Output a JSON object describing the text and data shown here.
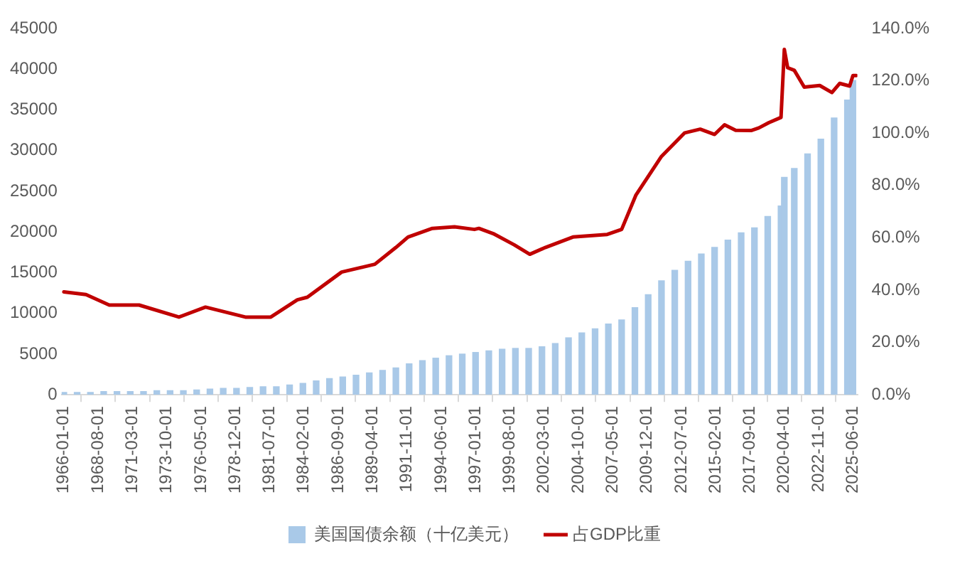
{
  "chart_data": {
    "type": "bar",
    "grid": false,
    "legend": "bottom",
    "x": [
      "1966-01-01",
      "1967-01-01",
      "1968-01-01",
      "1969-01-01",
      "1970-01-01",
      "1971-01-01",
      "1972-01-01",
      "1973-01-01",
      "1974-01-01",
      "1975-01-01",
      "1976-01-01",
      "1977-01-01",
      "1978-01-01",
      "1979-01-01",
      "1980-01-01",
      "1981-01-01",
      "1982-01-01",
      "1983-01-01",
      "1984-01-01",
      "1985-01-01",
      "1986-01-01",
      "1987-01-01",
      "1988-01-01",
      "1989-01-01",
      "1990-01-01",
      "1991-01-01",
      "1992-01-01",
      "1993-01-01",
      "1994-01-01",
      "1995-01-01",
      "1996-01-01",
      "1997-01-01",
      "1998-01-01",
      "1999-01-01",
      "2000-01-01",
      "2001-01-01",
      "2002-01-01",
      "2003-01-01",
      "2004-01-01",
      "2005-01-01",
      "2006-01-01",
      "2007-01-01",
      "2008-01-01",
      "2009-01-01",
      "2010-01-01",
      "2011-01-01",
      "2012-01-01",
      "2013-01-01",
      "2014-01-01",
      "2015-01-01",
      "2016-01-01",
      "2017-01-01",
      "2018-01-01",
      "2019-01-01",
      "2020-01-01",
      "2020-04-01",
      "2021-01-01",
      "2022-01-01",
      "2023-01-01",
      "2024-01-01",
      "2025-01-01",
      "2025-06-01"
    ],
    "xlim": [
      "1965-11-01",
      "2025-10-01"
    ],
    "xticks": [
      "1966-01-01",
      "1968-08-01",
      "1971-03-01",
      "1973-10-01",
      "1976-05-01",
      "1978-12-01",
      "1981-07-01",
      "1984-02-01",
      "1986-09-01",
      "1989-04-01",
      "1991-11-01",
      "1994-06-01",
      "1997-01-01",
      "1999-08-01",
      "2002-03-01",
      "2004-10-01",
      "2007-05-01",
      "2009-12-01",
      "2012-07-01",
      "2015-02-01",
      "2017-09-01",
      "2020-04-01",
      "2022-11-01",
      "2025-06-01"
    ],
    "ylim": [
      0,
      45000
    ],
    "yticks": [
      0,
      5000,
      10000,
      15000,
      20000,
      25000,
      30000,
      35000,
      40000,
      45000
    ],
    "y2lim": [
      0,
      140
    ],
    "y2ticks": [
      {
        "value": 0,
        "label": "0.0%"
      },
      {
        "value": 20,
        "label": "20.0%"
      },
      {
        "value": 40,
        "label": "40.0%"
      },
      {
        "value": 60,
        "label": "60.0%"
      },
      {
        "value": 80,
        "label": "80.0%"
      },
      {
        "value": 100,
        "label": "100.0%"
      },
      {
        "value": 120,
        "label": "120.0%"
      },
      {
        "value": 140,
        "label": "140.0%"
      }
    ],
    "series": [
      {
        "name": "美国国债余额（十亿美元）",
        "color": "#a9c9e8",
        "values": [
          300,
          300,
          300,
          400,
          400,
          400,
          400,
          500,
          500,
          500,
          600,
          700,
          800,
          800,
          900,
          1000,
          1000,
          1200,
          1400,
          1700,
          2000,
          2200,
          2400,
          2700,
          3000,
          3300,
          3800,
          4200,
          4500,
          4800,
          5000,
          5200,
          5400,
          5600,
          5700,
          5700,
          5900,
          6300,
          7000,
          7600,
          8100,
          8700,
          9200,
          10700,
          12300,
          14000,
          15300,
          16400,
          17300,
          18100,
          19000,
          19900,
          20500,
          21900,
          23200,
          26700,
          27800,
          29600,
          31400,
          34000,
          36200,
          38600
        ]
      },
      {
        "name": "占GDP比重",
        "type": "line",
        "axis": "y2",
        "color": "#c00000",
        "x": [
          "1966-01-01",
          "1967-09-01",
          "1969-06-01",
          "1971-09-01",
          "1974-09-01",
          "1976-09-01",
          "1979-09-01",
          "1981-08-01",
          "1983-08-01",
          "1984-05-01",
          "1986-12-01",
          "1989-06-01",
          "1991-01-01",
          "1991-12-01",
          "1993-10-01",
          "1995-06-01",
          "1996-12-01",
          "1997-04-01",
          "1998-05-01",
          "1999-12-01",
          "2001-02-01",
          "2002-04-01",
          "2004-05-01",
          "2006-12-01",
          "2008-01-01",
          "2009-02-01",
          "2011-01-01",
          "2012-10-01",
          "2013-12-01",
          "2015-01-01",
          "2015-10-01",
          "2016-08-01",
          "2017-10-01",
          "2018-05-01",
          "2019-02-01",
          "2020-01-01",
          "2020-04-01",
          "2020-07-01",
          "2021-01-01",
          "2021-10-01",
          "2022-12-01",
          "2023-11-01",
          "2024-06-01",
          "2025-03-01",
          "2025-06-01",
          "2025-09-01"
        ],
        "values": [
          39.3,
          38.3,
          34.3,
          34.3,
          29.7,
          33.5,
          29.7,
          29.7,
          36.3,
          37.3,
          46.9,
          49.9,
          56.3,
          60.3,
          63.6,
          64.2,
          63.2,
          63.6,
          61.6,
          57.3,
          53.7,
          56.3,
          60.3,
          61.3,
          63.2,
          76.4,
          91.1,
          100.1,
          101.5,
          99.5,
          103.2,
          101.1,
          101,
          102,
          104,
          106,
          132,
          125,
          124,
          117.6,
          118.2,
          115.5,
          119,
          118,
          122,
          122
        ]
      }
    ]
  }
}
